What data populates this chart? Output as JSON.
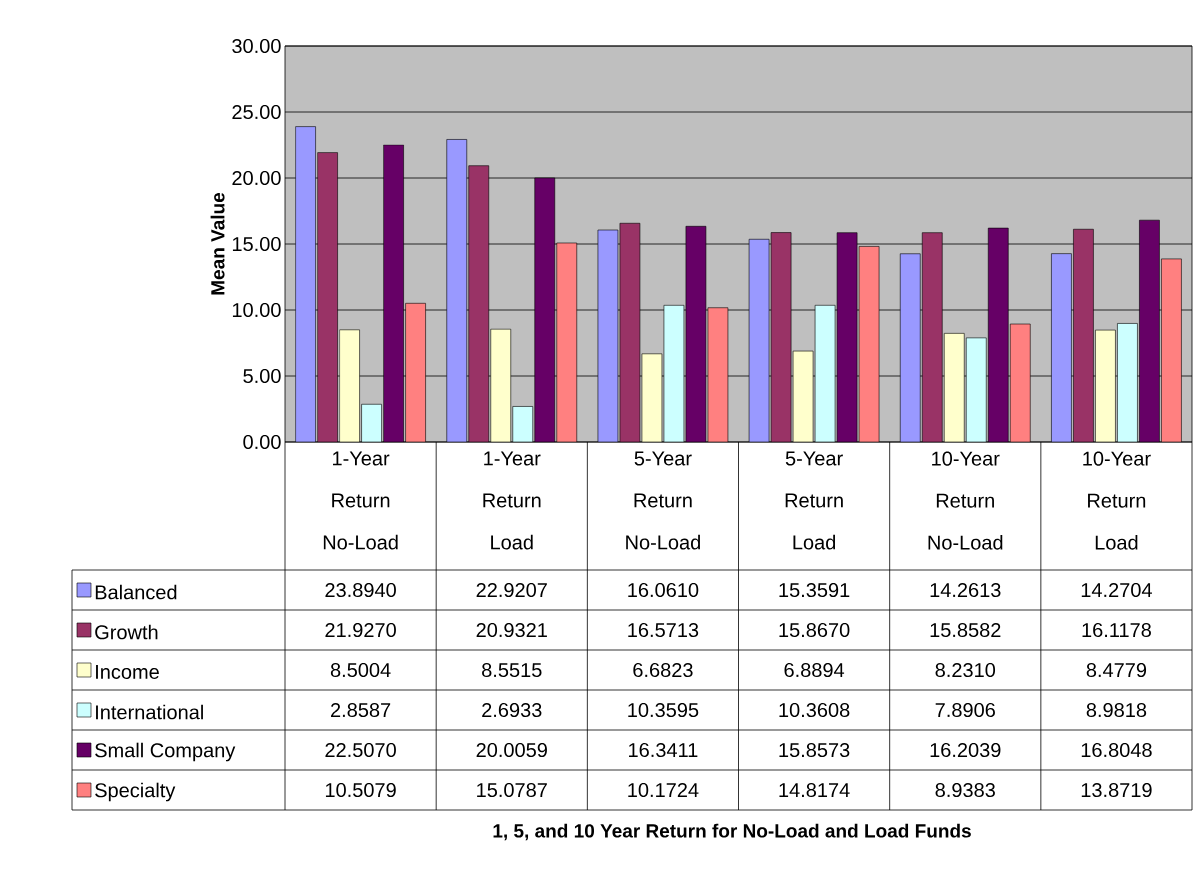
{
  "chart_data": {
    "type": "bar",
    "annotations": [
      "1, 5, and 10 Year Return for No-Load and Load Funds"
    ],
    "ylabel": "Mean Value",
    "categories": [
      "1-Year Return No-Load",
      "1-Year Return Load",
      "5-Year Return No-Load",
      "5-Year Return Load",
      "10-Year Return No-Load",
      "10-Year Return Load"
    ],
    "series": [
      {
        "name": "Balanced",
        "color": "#9999ff",
        "values": [
          23.894,
          22.9207,
          16.061,
          15.3591,
          14.2613,
          14.2704
        ],
        "value_labels": [
          "23.8940",
          "22.9207",
          "16.0610",
          "15.3591",
          "14.2613",
          "14.2704"
        ]
      },
      {
        "name": "Growth",
        "color": "#993366",
        "values": [
          21.927,
          20.9321,
          16.5713,
          15.867,
          15.8582,
          16.1178
        ],
        "value_labels": [
          "21.9270",
          "20.9321",
          "16.5713",
          "15.8670",
          "15.8582",
          "16.1178"
        ]
      },
      {
        "name": "Income",
        "color": "#ffffcc",
        "values": [
          8.5004,
          8.5515,
          6.6823,
          6.8894,
          8.231,
          8.4779
        ],
        "value_labels": [
          "8.5004",
          "8.5515",
          "6.6823",
          "6.8894",
          "8.2310",
          "8.4779"
        ]
      },
      {
        "name": "International",
        "color": "#ccffff",
        "values": [
          2.8587,
          2.6933,
          10.3595,
          10.3608,
          7.8906,
          8.9818
        ],
        "value_labels": [
          "2.8587",
          "2.6933",
          "10.3595",
          "10.3608",
          "7.8906",
          "8.9818"
        ]
      },
      {
        "name": "Small Company",
        "color": "#660066",
        "values": [
          22.507,
          20.0059,
          16.3411,
          15.8573,
          16.2039,
          16.8048
        ],
        "value_labels": [
          "22.5070",
          "20.0059",
          "16.3411",
          "15.8573",
          "16.2039",
          "16.8048"
        ]
      },
      {
        "name": "Specialty",
        "color": "#ff8080",
        "values": [
          10.5079,
          15.0787,
          10.1724,
          14.8174,
          8.9383,
          13.8719
        ],
        "value_labels": [
          "10.5079",
          "15.0787",
          "10.1724",
          "14.8174",
          "8.9383",
          "13.8719"
        ]
      }
    ],
    "ylim": [
      0,
      30
    ],
    "yticks": [
      {
        "value": 0,
        "label": "0.00"
      },
      {
        "value": 5,
        "label": "5.00"
      },
      {
        "value": 10,
        "label": "10.00"
      },
      {
        "value": 15,
        "label": "15.00"
      },
      {
        "value": 20,
        "label": "20.00"
      },
      {
        "value": 25,
        "label": "25.00"
      },
      {
        "value": 30,
        "label": "30.00"
      }
    ],
    "grid": "y",
    "legend": "bottom left"
  }
}
